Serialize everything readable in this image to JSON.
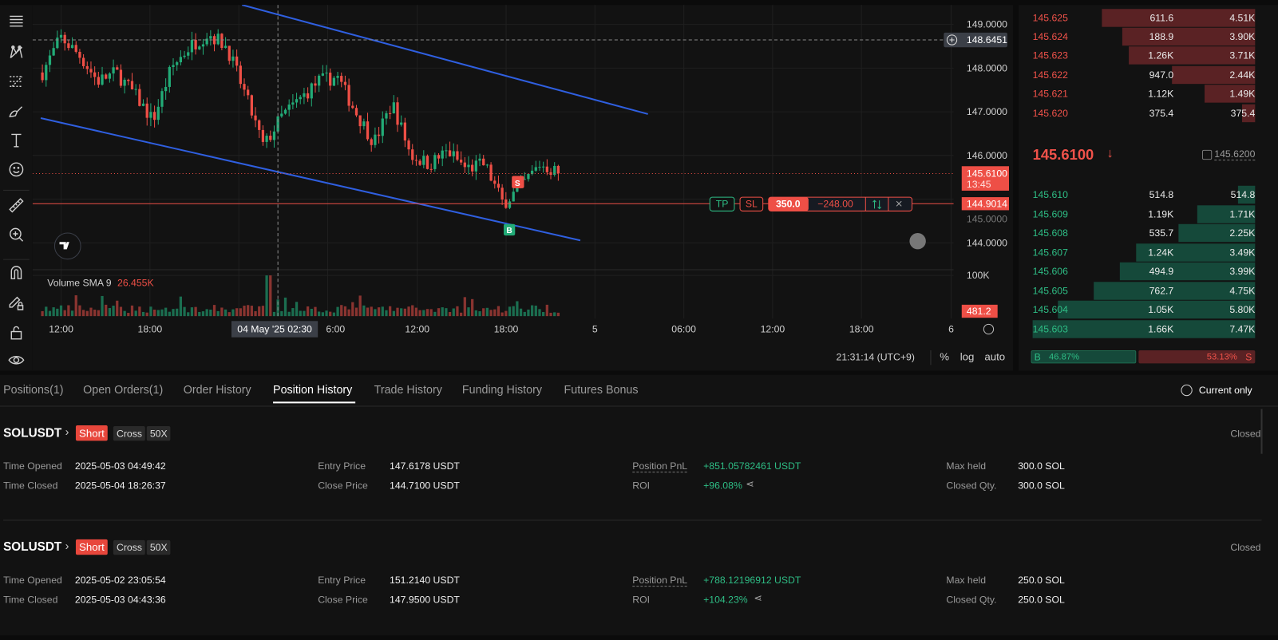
{
  "toolbar": {
    "tools": [
      "menu-lines-icon",
      "pattern-icon",
      "fib-icon",
      "brush-icon",
      "text-icon",
      "emoji-icon",
      "ruler-icon",
      "zoom-in-icon",
      "magnet-icon",
      "lock-drawing-icon",
      "unlock-icon",
      "eye-icon"
    ]
  },
  "colors": {
    "up": "#22ab77",
    "down": "#ee4f46",
    "trendline": "#2f5fe0",
    "ask_bar": "#5a2224",
    "bid_bar": "#15493a",
    "background": "#121212"
  },
  "chart": {
    "symbol_price_axis": [
      "149.0000",
      "148.0000",
      "147.0000",
      "146.0000",
      "145.0000",
      "144.0000"
    ],
    "price_ticks": [
      149,
      148,
      147,
      146,
      145,
      144
    ],
    "crosshair_price": "148.6451",
    "last_price": "145.6100",
    "countdown": "13:45",
    "position_price": "144.9014",
    "volume_axis_label": "100K",
    "volume_last": "481.2",
    "volume_label": "Volume SMA 9",
    "volume_value": "26.455K",
    "time_ticks": [
      "12:00",
      "18:00",
      "04 May '25  02:30",
      "6:00",
      "12:00",
      "18:00",
      "5",
      "06:00",
      "12:00",
      "18:00",
      "6"
    ],
    "clock": "21:31:14 (UTC+9)",
    "scale_pct": "%",
    "scale_log": "log",
    "scale_auto": "auto",
    "position_line": {
      "tp": "TP",
      "sl": "SL",
      "qty": "350.0",
      "pnl": "−248.00"
    },
    "markers": {
      "sell": "S",
      "buy": "B"
    }
  },
  "chart_data": {
    "type": "candlestick",
    "approx_close_path": [
      147.9,
      148.7,
      148.3,
      147.7,
      147.9,
      147.4,
      146.8,
      148.0,
      148.5,
      148.8,
      148.5,
      147.4,
      146.2,
      146.9,
      147.3,
      147.7,
      147.8,
      147.0,
      146.3,
      147.2,
      146.0,
      145.8,
      146.1,
      145.7,
      145.8,
      144.9,
      145.3,
      145.8,
      145.61
    ]
  },
  "orderbook": {
    "asks": [
      [
        "145.625",
        "611.6",
        "4.51K",
        4.51
      ],
      [
        "145.624",
        "188.9",
        "3.90K",
        3.9
      ],
      [
        "145.623",
        "1.26K",
        "3.71K",
        3.71
      ],
      [
        "145.622",
        "947.0",
        "2.44K",
        2.44
      ],
      [
        "145.621",
        "1.12K",
        "1.49K",
        1.49
      ],
      [
        "145.620",
        "375.4",
        "375.4",
        0.3754
      ]
    ],
    "mid_price": "145.6100",
    "mark_price": "145.6200",
    "bids": [
      [
        "145.610",
        "514.8",
        "514.8",
        0.5148
      ],
      [
        "145.609",
        "1.19K",
        "1.71K",
        1.71
      ],
      [
        "145.608",
        "535.7",
        "2.25K",
        2.25
      ],
      [
        "145.607",
        "1.24K",
        "3.49K",
        3.49
      ],
      [
        "145.606",
        "494.9",
        "3.99K",
        3.99
      ],
      [
        "145.605",
        "762.7",
        "4.75K",
        4.75
      ],
      [
        "145.604",
        "1.05K",
        "5.80K",
        5.8
      ],
      [
        "145.603",
        "1.66K",
        "7.47K",
        7.47
      ]
    ],
    "buy_label": "B",
    "sell_label": "S",
    "buy_pct": "46.87%",
    "sell_pct": "53.13%",
    "buy_ratio": 46.87
  },
  "bottom": {
    "tabs": [
      "Positions(1)",
      "Open Orders(1)",
      "Order History",
      "Position History",
      "Trade History",
      "Funding History",
      "Futures Bonus"
    ],
    "active_tab": 3,
    "current_only": "Current only",
    "labels": {
      "time_opened": "Time Opened",
      "time_closed": "Time Closed",
      "entry": "Entry Price",
      "close": "Close Price",
      "pnl": "Position PnL",
      "roi": "ROI",
      "max": "Max held",
      "closed_qty": "Closed Qty."
    },
    "positions": [
      {
        "symbol": "SOLUSDT",
        "side": "Short",
        "mode": "Cross",
        "leverage": "50X",
        "status": "Closed",
        "opened": "2025-05-03 04:49:42",
        "closed": "2025-05-04 18:26:37",
        "entry": "147.6178 USDT",
        "close": "144.7100 USDT",
        "pnl": "+851.05782461 USDT",
        "roi": "+96.08%",
        "max": "300.0 SOL",
        "closed_qty": "300.0 SOL"
      },
      {
        "symbol": "SOLUSDT",
        "side": "Short",
        "mode": "Cross",
        "leverage": "50X",
        "status": "Closed",
        "opened": "2025-05-02 23:05:54",
        "closed": "2025-05-03 04:43:36",
        "entry": "151.2140 USDT",
        "close": "147.9500 USDT",
        "pnl": "+788.12196912 USDT",
        "roi": "+104.23%",
        "max": "250.0 SOL",
        "closed_qty": "250.0 SOL"
      }
    ]
  }
}
